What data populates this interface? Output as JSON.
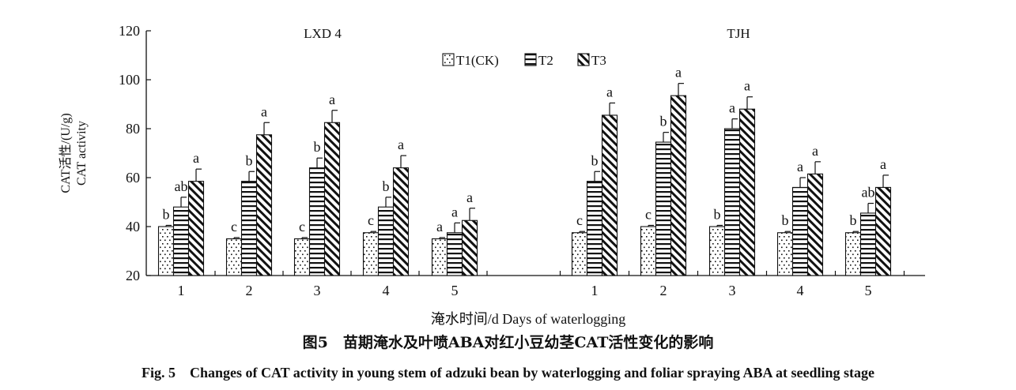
{
  "chart_data": {
    "type": "bar",
    "panels": [
      {
        "title": "LXD 4",
        "categories": [
          "1",
          "2",
          "3",
          "4",
          "5"
        ]
      },
      {
        "title": "TJH",
        "categories": [
          "1",
          "2",
          "3",
          "4",
          "5"
        ]
      }
    ],
    "ylabel_cn": "CAT活性/(U/g)",
    "ylabel_en": "CAT activity",
    "xlabel": "淹水时间/d Days of waterlogging",
    "ylim": [
      20,
      120
    ],
    "yticks": [
      "20",
      "40",
      "60",
      "80",
      "100",
      "120"
    ],
    "legend_position": "top-center",
    "grid": false,
    "series": [
      {
        "name": "T1(CK)",
        "pattern": "dots",
        "panels": [
          {
            "values": [
              40,
              35,
              35,
              37.5,
              35
            ],
            "errors": [
              0.5,
              0.5,
              0.5,
              0.5,
              0.5
            ],
            "letters": [
              "b",
              "c",
              "c",
              "c",
              "a"
            ]
          },
          {
            "values": [
              37.5,
              40,
              40,
              37.5,
              37.5
            ],
            "errors": [
              0.5,
              0.5,
              0.5,
              0.5,
              0.5
            ],
            "letters": [
              "c",
              "c",
              "b",
              "b",
              "b"
            ]
          }
        ]
      },
      {
        "name": "T2",
        "pattern": "horizontal-lines",
        "panels": [
          {
            "values": [
              48,
              58.5,
              64,
              48,
              37.5
            ],
            "errors": [
              4,
              4,
              4,
              4,
              4
            ],
            "letters": [
              "ab",
              "b",
              "b",
              "b",
              "a"
            ]
          },
          {
            "values": [
              58.5,
              74.5,
              80,
              56,
              45.5
            ],
            "errors": [
              4,
              4,
              4,
              4,
              4
            ],
            "letters": [
              "b",
              "b",
              "a",
              "a",
              "ab"
            ]
          }
        ]
      },
      {
        "name": "T3",
        "pattern": "diagonal-lines",
        "panels": [
          {
            "values": [
              58.5,
              77.5,
              82.5,
              64,
              42.5
            ],
            "errors": [
              5,
              5,
              5,
              5,
              5
            ],
            "letters": [
              "a",
              "a",
              "a",
              "a",
              "a"
            ]
          },
          {
            "values": [
              85.5,
              93.5,
              88,
              61.5,
              56
            ],
            "errors": [
              5,
              5,
              5,
              5,
              5
            ],
            "letters": [
              "a",
              "a",
              "a",
              "a",
              "a"
            ]
          }
        ]
      }
    ]
  },
  "caption": {
    "cn": "图5　苗期淹水及叶喷ABA对红小豆幼茎CAT活性变化的影响",
    "en": "Fig. 5　Changes of CAT activity in young stem of adzuki bean by waterlogging and foliar spraying ABA at seedling stage"
  }
}
